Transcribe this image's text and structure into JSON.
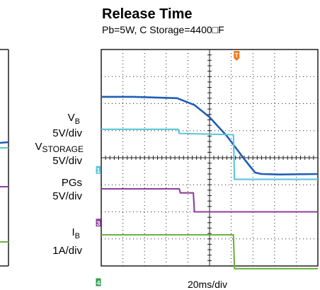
{
  "chart_data": {
    "type": "line",
    "title": "Release Time",
    "subtitle": "Pb=5W, C Storage=4400□F",
    "xlabel": "20ms/div",
    "ylabel": "",
    "grid": true,
    "time_axis": {
      "divisions": 10,
      "unit": "ms",
      "per_div": 20
    },
    "vertical_axis": {
      "divisions": 8,
      "unit": "div"
    },
    "trigger_marker": {
      "label": "T",
      "x_div": 6.25,
      "color": "#f47920"
    },
    "series": [
      {
        "name": "VB",
        "name_sub": "B",
        "scale": "5V/div",
        "color": "#1f5fb5",
        "x_div": [
          0,
          1.5,
          3.5,
          4.3,
          5.0,
          5.8,
          6.6,
          7.1,
          7.4,
          8.2,
          10
        ],
        "y_div": [
          6.25,
          6.25,
          6.2,
          5.95,
          5.5,
          4.8,
          3.95,
          3.45,
          3.4,
          3.38,
          3.4
        ]
      },
      {
        "name": "VSTORAGE",
        "name_sub": "",
        "scale": "5V/div",
        "color": "#5bc5d8",
        "x_div": [
          0,
          3.55,
          3.6,
          6.1,
          6.15,
          10
        ],
        "y_div": [
          5.05,
          5.05,
          4.9,
          4.85,
          3.2,
          3.2
        ]
      },
      {
        "name": "PGs",
        "name_sub": "",
        "scale": "5V/div",
        "color": "#8e3e9e",
        "x_div": [
          0,
          3.6,
          3.65,
          4.25,
          4.3,
          10
        ],
        "y_div": [
          2.85,
          2.85,
          2.7,
          2.7,
          2.0,
          2.0
        ]
      },
      {
        "name": "IB",
        "name_sub": "B",
        "scale": "1A/div",
        "color": "#6cb33f",
        "x_div": [
          0,
          6.1,
          6.15,
          10
        ],
        "y_div": [
          1.15,
          1.15,
          -0.1,
          -0.1
        ]
      }
    ],
    "channel_markers": [
      {
        "label": "1",
        "color": "#5bc5d8",
        "y_div": 3.55
      },
      {
        "label": "3",
        "color": "#8e3e9e",
        "y_div": 1.6
      },
      {
        "label": "4",
        "color": "#2e9e4a",
        "y_div": -0.6
      }
    ]
  }
}
